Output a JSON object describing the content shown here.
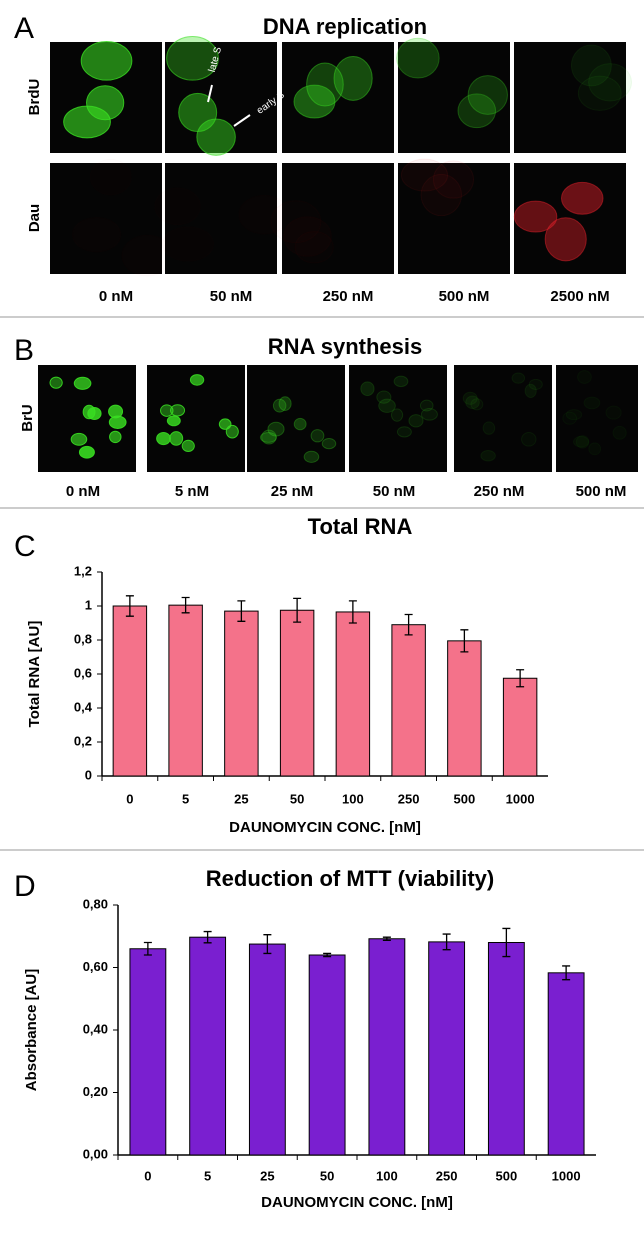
{
  "panel_a": {
    "letter": "A",
    "title": "DNA replication",
    "rows": [
      "BrdU",
      "Dau"
    ],
    "columns": [
      "0 nM",
      "50 nM",
      "250 nM",
      "500 nM",
      "2500 nM"
    ],
    "annotations": [
      "late S",
      "early S"
    ]
  },
  "panel_b": {
    "letter": "B",
    "title": "RNA synthesis",
    "rows": [
      "BrU"
    ],
    "columns": [
      "0 nM",
      "5 nM",
      "25 nM",
      "50 nM",
      "250 nM",
      "500 nM"
    ]
  },
  "chart_data": [
    {
      "type": "bar",
      "panel_label": "C",
      "title": "Total RNA",
      "ylabel": "Total RNA [AU]",
      "xlabel": "DAUNOMYCIN CONC. [nM]",
      "categories": [
        "0",
        "5",
        "25",
        "50",
        "100",
        "250",
        "500",
        "1000"
      ],
      "values": [
        1.0,
        1.005,
        0.97,
        0.975,
        0.965,
        0.89,
        0.795,
        0.575
      ],
      "errors": [
        0.06,
        0.045,
        0.06,
        0.07,
        0.065,
        0.06,
        0.065,
        0.05
      ],
      "color": "#f4728a",
      "ylim": [
        0,
        1.2
      ],
      "yticks": [
        0,
        {
          "value": 0.2,
          "label": "0,2"
        },
        {
          "value": 0.4,
          "label": "0,4"
        },
        {
          "value": 0.6,
          "label": "0,6"
        },
        {
          "value": 0.8,
          "label": "0,8"
        },
        1,
        {
          "value": 1.2,
          "label": "1,2"
        }
      ],
      "grid": false
    },
    {
      "type": "bar",
      "panel_label": "D",
      "title": "Reduction of MTT (viability)",
      "ylabel": "Absorbance [AU]",
      "xlabel": "DAUNOMYCIN CONC. [nM]",
      "categories": [
        "0",
        "5",
        "25",
        "50",
        "100",
        "250",
        "500",
        "1000"
      ],
      "values": [
        0.66,
        0.697,
        0.675,
        0.64,
        0.692,
        0.682,
        0.68,
        0.583
      ],
      "errors": [
        0.02,
        0.018,
        0.03,
        0.005,
        0.005,
        0.025,
        0.045,
        0.022
      ],
      "color": "#7a1fd0",
      "ylim": [
        0,
        0.8
      ],
      "yticks": [
        {
          "value": 0,
          "label": "0,00"
        },
        {
          "value": 0.2,
          "label": "0,20"
        },
        {
          "value": 0.4,
          "label": "0,40"
        },
        {
          "value": 0.6,
          "label": "0,60"
        },
        {
          "value": 0.8,
          "label": "0,80"
        }
      ],
      "grid": false
    }
  ]
}
